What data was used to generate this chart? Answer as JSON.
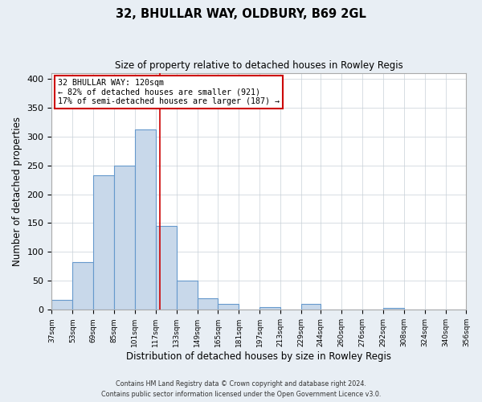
{
  "title": "32, BHULLAR WAY, OLDBURY, B69 2GL",
  "subtitle": "Size of property relative to detached houses in Rowley Regis",
  "xlabel": "Distribution of detached houses by size in Rowley Regis",
  "ylabel": "Number of detached properties",
  "bin_edges": [
    37,
    53,
    69,
    85,
    101,
    117,
    133,
    149,
    165,
    181,
    197,
    213,
    229,
    244,
    260,
    276,
    292,
    308,
    324,
    340,
    356
  ],
  "bin_counts": [
    17,
    83,
    233,
    250,
    312,
    145,
    50,
    20,
    10,
    0,
    5,
    0,
    10,
    0,
    0,
    0,
    3,
    0,
    0,
    0
  ],
  "bar_facecolor": "#c8d8ea",
  "bar_edgecolor": "#6699cc",
  "vline_x": 120,
  "vline_color": "#cc0000",
  "annotation_title": "32 BHULLAR WAY: 120sqm",
  "annotation_line1": "← 82% of detached houses are smaller (921)",
  "annotation_line2": "17% of semi-detached houses are larger (187) →",
  "annotation_box_edgecolor": "#cc0000",
  "annotation_box_facecolor": "#ffffff",
  "ylim": [
    0,
    410
  ],
  "yticks": [
    0,
    50,
    100,
    150,
    200,
    250,
    300,
    350,
    400
  ],
  "tick_labels": [
    "37sqm",
    "53sqm",
    "69sqm",
    "85sqm",
    "101sqm",
    "117sqm",
    "133sqm",
    "149sqm",
    "165sqm",
    "181sqm",
    "197sqm",
    "213sqm",
    "229sqm",
    "244sqm",
    "260sqm",
    "276sqm",
    "292sqm",
    "308sqm",
    "324sqm",
    "340sqm",
    "356sqm"
  ],
  "footer_line1": "Contains HM Land Registry data © Crown copyright and database right 2024.",
  "footer_line2": "Contains public sector information licensed under the Open Government Licence v3.0.",
  "bg_color": "#e8eef4",
  "plot_bg_color": "#ffffff",
  "grid_color": "#c8d0d8"
}
